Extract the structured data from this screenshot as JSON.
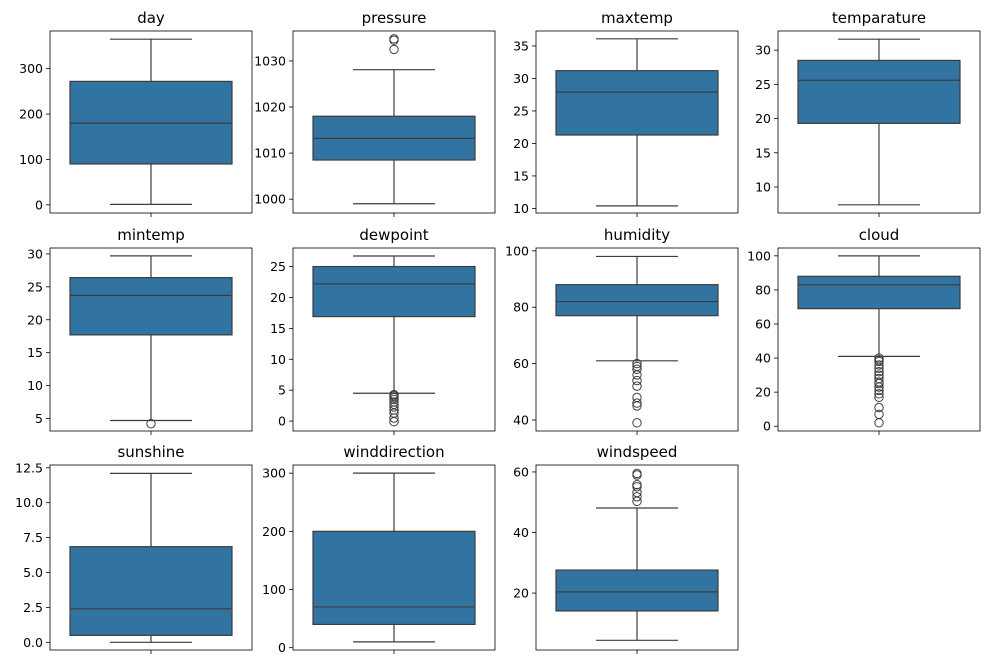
{
  "chart_data": [
    {
      "type": "box",
      "title": "day",
      "ylim": [
        -18,
        383
      ],
      "yticks": [
        0,
        100,
        200,
        300
      ],
      "tick_labels": [
        "0",
        "100",
        "200",
        "300"
      ],
      "whisker_low": 1,
      "q1": 90,
      "median": 180,
      "q3": 272,
      "whisker_high": 365,
      "outliers": []
    },
    {
      "type": "box",
      "title": "pressure",
      "ylim": [
        997,
        1036.5
      ],
      "yticks": [
        1000,
        1010,
        1020,
        1030
      ],
      "tick_labels": [
        "1000",
        "1010",
        "1020",
        "1030"
      ],
      "whisker_low": 999,
      "q1": 1008.5,
      "median": 1013.2,
      "q3": 1018,
      "whisker_high": 1028.1,
      "outliers": [
        1032.5,
        1034.5,
        1034.8
      ]
    },
    {
      "type": "box",
      "title": "maxtemp",
      "ylim": [
        9.3,
        37.3
      ],
      "yticks": [
        10,
        15,
        20,
        25,
        30,
        35
      ],
      "tick_labels": [
        "10",
        "15",
        "20",
        "25",
        "30",
        "35"
      ],
      "whisker_low": 10.4,
      "q1": 21.3,
      "median": 27.9,
      "q3": 31.2,
      "whisker_high": 36.1,
      "outliers": []
    },
    {
      "type": "box",
      "title": "temparature",
      "ylim": [
        6.2,
        32.8
      ],
      "yticks": [
        10,
        15,
        20,
        25,
        30
      ],
      "tick_labels": [
        "10",
        "15",
        "20",
        "25",
        "30"
      ],
      "whisker_low": 7.4,
      "q1": 19.3,
      "median": 25.6,
      "q3": 28.5,
      "whisker_high": 31.6,
      "outliers": []
    },
    {
      "type": "box",
      "title": "mintemp",
      "ylim": [
        3.1,
        30.9
      ],
      "yticks": [
        5,
        10,
        15,
        20,
        25,
        30
      ],
      "tick_labels": [
        "5",
        "10",
        "15",
        "20",
        "25",
        "30"
      ],
      "whisker_low": 4.7,
      "q1": 17.7,
      "median": 23.7,
      "q3": 26.4,
      "whisker_high": 29.7,
      "outliers": [
        4.2
      ]
    },
    {
      "type": "box",
      "title": "dewpoint",
      "ylim": [
        -1.6,
        28
      ],
      "yticks": [
        0,
        5,
        10,
        15,
        20,
        25
      ],
      "tick_labels": [
        "0",
        "5",
        "10",
        "15",
        "20",
        "25"
      ],
      "whisker_low": 4.5,
      "q1": 16.9,
      "median": 22.2,
      "q3": 25.0,
      "whisker_high": 26.7,
      "outliers": [
        -0.1,
        0.5,
        1.3,
        1.8,
        2.3,
        2.7,
        3.1,
        3.5,
        3.8,
        4.1,
        4.3
      ]
    },
    {
      "type": "box",
      "title": "humidity",
      "ylim": [
        36.1,
        101
      ],
      "yticks": [
        40,
        60,
        80,
        100
      ],
      "tick_labels": [
        "40",
        "60",
        "80",
        "100"
      ],
      "whisker_low": 61,
      "q1": 77,
      "median": 82,
      "q3": 88,
      "whisker_high": 98,
      "outliers": [
        39,
        45,
        46,
        48,
        52,
        54,
        56,
        58,
        59,
        60
      ]
    },
    {
      "type": "box",
      "title": "cloud",
      "ylim": [
        -2.8,
        104.6
      ],
      "yticks": [
        0,
        20,
        40,
        60,
        80,
        100
      ],
      "tick_labels": [
        "0",
        "20",
        "40",
        "60",
        "80",
        "100"
      ],
      "whisker_low": 41,
      "q1": 69,
      "median": 83,
      "q3": 88,
      "whisker_high": 100,
      "outliers": [
        2,
        7,
        11,
        17,
        19,
        21,
        23,
        25,
        26,
        28,
        30,
        32,
        34,
        36,
        38,
        39,
        40
      ]
    },
    {
      "type": "box",
      "title": "sunshine",
      "ylim": [
        -0.55,
        12.7
      ],
      "yticks": [
        0.0,
        2.5,
        5.0,
        7.5,
        10.0,
        12.5
      ],
      "tick_labels": [
        "0.0",
        "2.5",
        "5.0",
        "7.5",
        "10.0",
        "12.5"
      ],
      "whisker_low": 0.0,
      "q1": 0.5,
      "median": 2.4,
      "q3": 6.85,
      "whisker_high": 12.1,
      "outliers": []
    },
    {
      "type": "box",
      "title": "winddirection",
      "ylim": [
        -4,
        314
      ],
      "yticks": [
        0,
        100,
        200,
        300
      ],
      "tick_labels": [
        "0",
        "100",
        "200",
        "300"
      ],
      "whisker_low": 10,
      "q1": 40,
      "median": 70,
      "q3": 200,
      "whisker_high": 300,
      "outliers": []
    },
    {
      "type": "box",
      "title": "windspeed",
      "ylim": [
        1.2,
        62.3
      ],
      "yticks": [
        20,
        40,
        60
      ],
      "tick_labels": [
        "20",
        "40",
        "60"
      ],
      "whisker_low": 4.4,
      "q1": 14.1,
      "median": 20.4,
      "q3": 27.6,
      "whisker_high": 48.1,
      "outliers": [
        50.3,
        51.8,
        53.2,
        55.1,
        55.8,
        59.0,
        59.5
      ]
    }
  ],
  "style": {
    "box_color": "#3274a1",
    "line_color": "#3d3d3d",
    "frame_color": "#000000"
  }
}
